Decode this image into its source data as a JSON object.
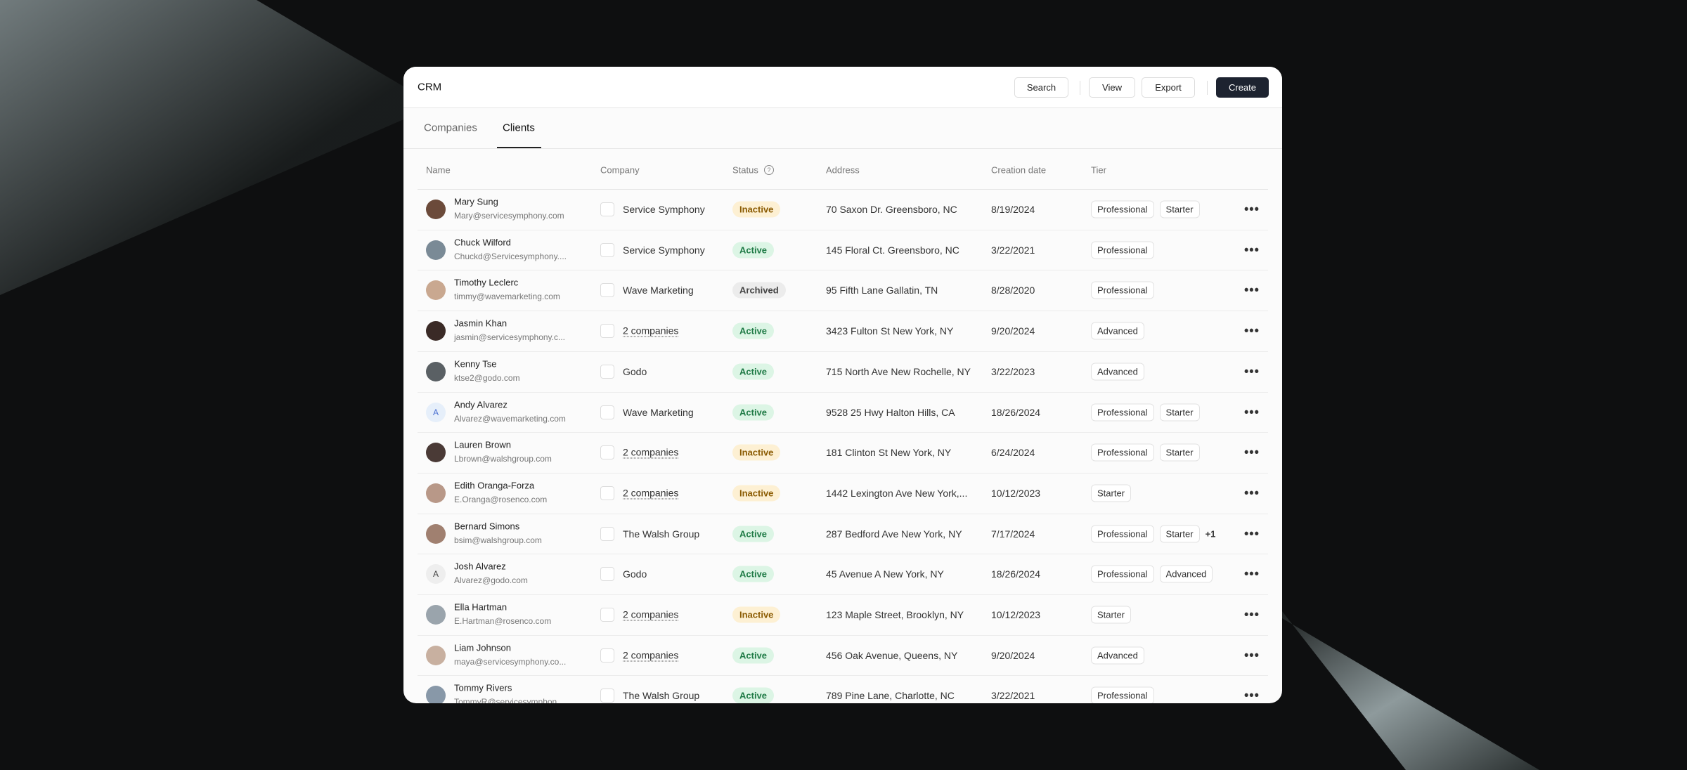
{
  "header": {
    "title": "CRM",
    "buttons": [
      "Search",
      "View",
      "Export",
      "Create"
    ]
  },
  "tabs": [
    "Companies",
    "Clients"
  ],
  "table": {
    "columns": [
      "Name",
      "Company",
      "Status",
      "Address",
      "Creation date",
      "Tier"
    ],
    "rows": [
      {
        "name": "Mary Sung",
        "email": "Mary@servicesymphony.com",
        "company": "Service Symphony",
        "status": "Inactive",
        "address": "70 Saxon Dr. Greensboro, NC",
        "date": "8/19/2024",
        "tiers": [
          "Professional",
          "Starter"
        ]
      },
      {
        "name": "Chuck Wilford",
        "email": "Chuckd@Servicesymphony....",
        "company": "Service Symphony",
        "status": "Active",
        "address": "145 Floral Ct. Greensboro, NC",
        "date": "3/22/2021",
        "tiers": [
          "Professional"
        ]
      },
      {
        "name": "Timothy Leclerc",
        "email": "timmy@wavemarketing.com",
        "company": "Wave Marketing",
        "status": "Archived",
        "address": "95 Fifth Lane Gallatin, TN",
        "date": "8/28/2020",
        "tiers": [
          "Professional"
        ]
      },
      {
        "name": "Jasmin Khan",
        "email": "jasmin@servicesymphony.c...",
        "company": "2 companies",
        "status": "Active",
        "address": "3423 Fulton St New York, NY",
        "date": "9/20/2024",
        "tiers": [
          "Advanced"
        ]
      },
      {
        "name": "Kenny Tse",
        "email": "ktse2@godo.com",
        "company": "Godo",
        "status": "Active",
        "address": "715 North Ave New Rochelle, NY",
        "date": "3/22/2023",
        "tiers": [
          "Advanced"
        ]
      },
      {
        "name": "Andy Alvarez",
        "email": "Alvarez@wavemarketing.com",
        "avatar_initial": "A",
        "company": "Wave Marketing",
        "status": "Active",
        "address": "9528 25 Hwy Halton Hills, CA",
        "date": "18/26/2024",
        "tiers": [
          "Professional",
          "Starter"
        ]
      },
      {
        "name": "Lauren Brown",
        "email": "Lbrown@walshgroup.com",
        "company": "2 companies",
        "status": "Inactive",
        "address": "181 Clinton St New York, NY",
        "date": "6/24/2024",
        "tiers": [
          "Professional",
          "Starter"
        ]
      },
      {
        "name": "Edith Oranga-Forza",
        "email": "E.Oranga@rosenco.com",
        "company": "2 companies",
        "status": "Inactive",
        "address": "1442 Lexington Ave New York,...",
        "date": "10/12/2023",
        "tiers": [
          "Starter"
        ]
      },
      {
        "name": "Bernard Simons",
        "email": "bsim@walshgroup.com",
        "company": "The Walsh Group",
        "status": "Active",
        "address": "287 Bedford Ave New York, NY",
        "date": "7/17/2024",
        "tiers": [
          "Professional",
          "Starter"
        ],
        "more": "+1"
      },
      {
        "name": "Josh Alvarez",
        "email": "Alvarez@godo.com",
        "avatar_initial": "A",
        "company": "Godo",
        "status": "Active",
        "address": "45 Avenue A New York, NY",
        "date": "18/26/2024",
        "tiers": [
          "Professional",
          "Advanced"
        ]
      },
      {
        "name": "Ella Hartman",
        "email": "E.Hartman@rosenco.com",
        "company": "2 companies",
        "status": "Inactive",
        "address": "123 Maple Street, Brooklyn, NY",
        "date": "10/12/2023",
        "tiers": [
          "Starter"
        ]
      },
      {
        "name": "Liam Johnson",
        "email": "maya@servicesymphony.co...",
        "company": "2 companies",
        "status": "Active",
        "address": "456 Oak Avenue, Queens, NY",
        "date": "9/20/2024",
        "tiers": [
          "Advanced"
        ]
      },
      {
        "name": "Tommy Rivers",
        "email": "TommyR@servicesymphon...",
        "company": "The Walsh Group",
        "status": "Active",
        "address": "789 Pine Lane, Charlotte, NC",
        "date": "3/22/2021",
        "tiers": [
          "Professional"
        ]
      }
    ]
  }
}
